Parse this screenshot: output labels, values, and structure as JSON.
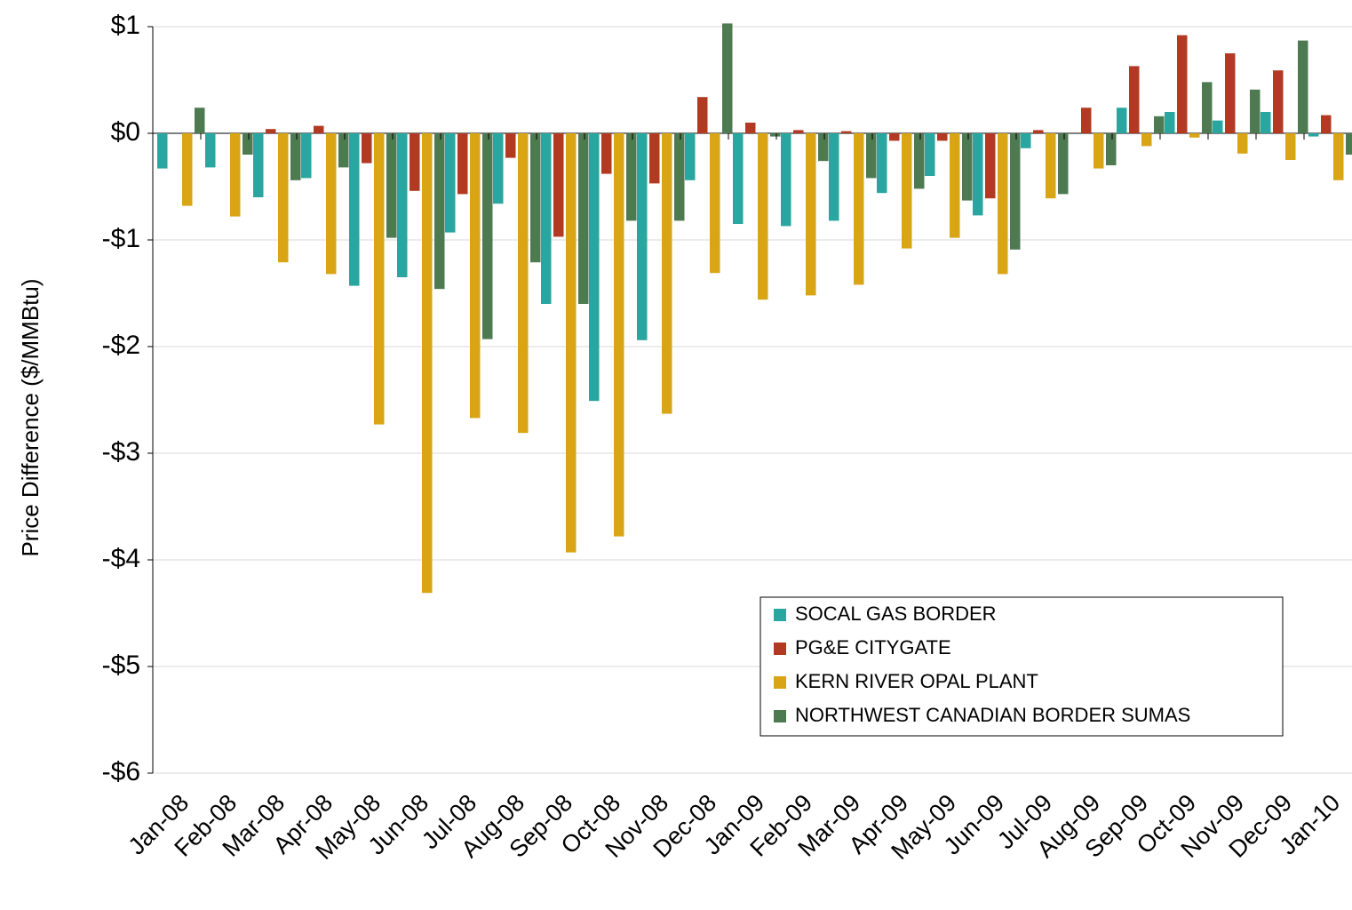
{
  "chart_data": {
    "type": "bar",
    "y_label": "Price Difference  ($/MMBtu)",
    "categories": [
      "Jan-08",
      "Feb-08",
      "Mar-08",
      "Apr-08",
      "May-08",
      "Jun-08",
      "Jul-08",
      "Aug-08",
      "Sep-08",
      "Oct-08",
      "Nov-08",
      "Dec-08",
      "Jan-09",
      "Feb-09",
      "Mar-09",
      "Apr-09",
      "May-09",
      "Jun-09",
      "Jul-09",
      "Aug-09",
      "Sep-09",
      "Oct-09",
      "Nov-09",
      "Dec-09",
      "Jan-10"
    ],
    "series": [
      {
        "name": "SOCAL GAS BORDER",
        "color": "#2aa6a0",
        "values": [
          -0.33,
          -0.32,
          -0.6,
          -0.42,
          -1.43,
          -1.35,
          -0.93,
          -0.66,
          -1.6,
          -2.51,
          -1.94,
          -0.44,
          -0.85,
          -0.87,
          -0.82,
          -0.56,
          -0.4,
          -0.77,
          -0.14,
          0,
          0.24,
          0.2,
          0.12,
          0.2,
          -0.03
        ]
      },
      {
        "name": "PG&E CITYGATE",
        "color": "#b23a22",
        "values": [
          0,
          0,
          0.04,
          0.07,
          -0.28,
          -0.54,
          -0.57,
          -0.23,
          -0.97,
          -0.38,
          -0.47,
          0.34,
          0.1,
          0.03,
          0.02,
          -0.07,
          -0.07,
          -0.61,
          0.03,
          0.24,
          0.63,
          0.92,
          0.75,
          0.59,
          0.17
        ]
      },
      {
        "name": "KERN RIVER OPAL PLANT",
        "color": "#d9a514",
        "values": [
          -0.68,
          -0.78,
          -1.21,
          -1.32,
          -2.73,
          -4.31,
          -2.67,
          -2.81,
          -3.93,
          -3.78,
          -2.63,
          -1.31,
          -1.56,
          -1.52,
          -1.42,
          -1.08,
          -0.98,
          -1.32,
          -0.61,
          -0.33,
          -0.12,
          -0.04,
          -0.19,
          -0.25,
          -0.44
        ]
      },
      {
        "name": "NORTHWEST CANADIAN BORDER SUMAS",
        "color": "#4e7a52",
        "values": [
          0.24,
          -0.2,
          -0.44,
          -0.32,
          -0.98,
          -1.46,
          -1.93,
          -1.21,
          -1.6,
          -0.82,
          -0.82,
          1.03,
          -0.03,
          -0.26,
          -0.42,
          -0.52,
          -0.63,
          -1.09,
          -0.57,
          -0.3,
          0.16,
          0.48,
          0.41,
          0.87,
          -0.2
        ]
      }
    ],
    "ylim": [
      -6,
      1
    ],
    "yticks": [
      {
        "value": -6,
        "label": "-$6"
      },
      {
        "value": -5,
        "label": "-$5"
      },
      {
        "value": -4,
        "label": "-$4"
      },
      {
        "value": -3,
        "label": "-$3"
      },
      {
        "value": -2,
        "label": "-$2"
      },
      {
        "value": -1,
        "label": "-$1"
      },
      {
        "value": 0,
        "label": "$0"
      },
      {
        "value": 1,
        "label": "$1"
      }
    ],
    "grid": true
  }
}
